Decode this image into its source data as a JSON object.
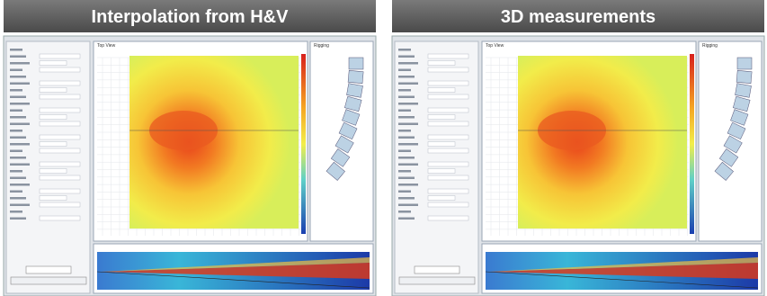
{
  "panels": [
    {
      "title": "Interpolation from H&V",
      "view_tab": "Top View",
      "side_tab": "Rigging"
    },
    {
      "title": "3D measurements",
      "view_tab": "Top View",
      "side_tab": "Rigging"
    }
  ]
}
